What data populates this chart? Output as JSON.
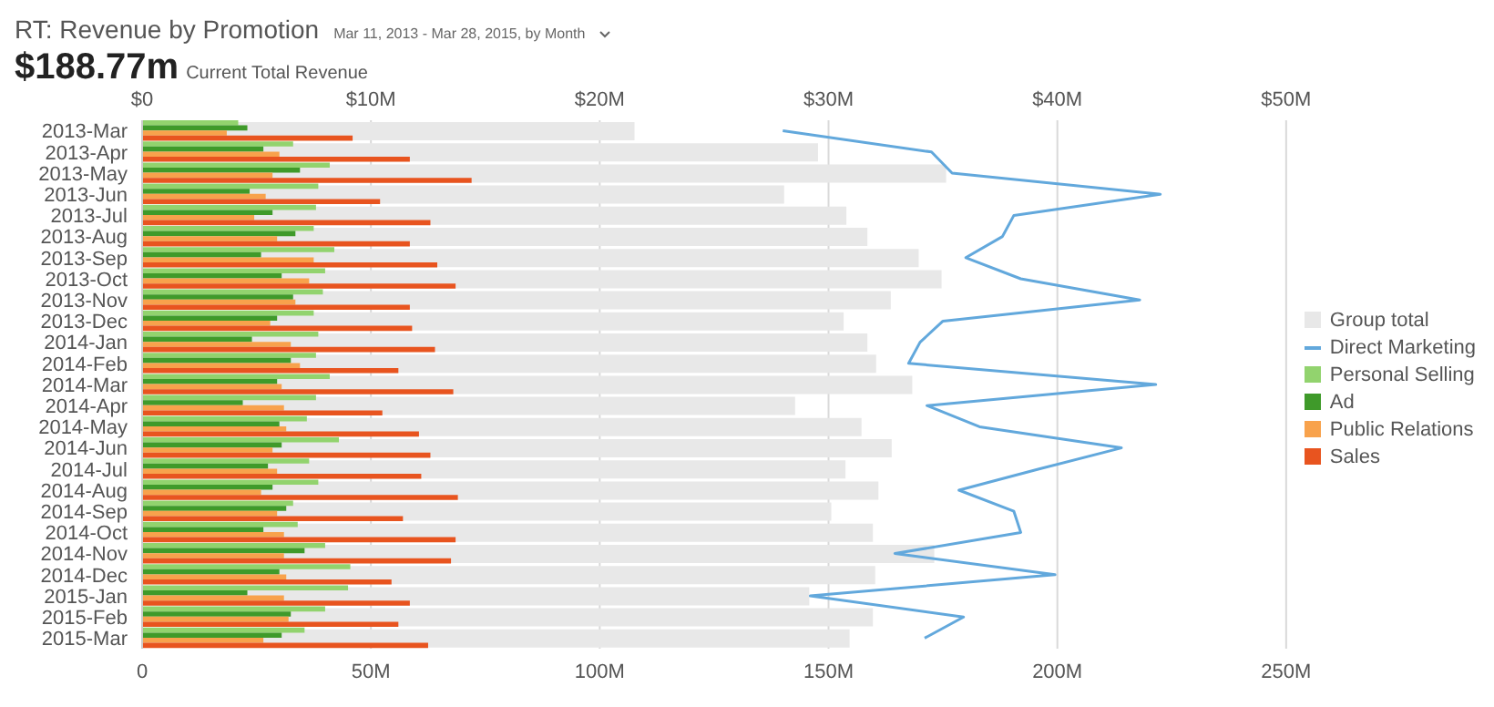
{
  "chart_data": {
    "type": "bar",
    "orientation": "horizontal",
    "title": "RT: Revenue by Promotion",
    "subtitle": "Mar 11, 2013 - Mar 28, 2015, by Month",
    "annotations": [
      "$188.77m",
      "Current Total Revenue"
    ],
    "categories": [
      "2013-Mar",
      "2013-Apr",
      "2013-May",
      "2013-Jun",
      "2013-Jul",
      "2013-Aug",
      "2013-Sep",
      "2013-Oct",
      "2013-Nov",
      "2013-Dec",
      "2014-Jan",
      "2014-Feb",
      "2014-Mar",
      "2014-Apr",
      "2014-May",
      "2014-Jun",
      "2014-Jul",
      "2014-Aug",
      "2014-Sep",
      "2014-Oct",
      "2014-Nov",
      "2014-Dec",
      "2015-Jan",
      "2015-Feb",
      "2015-Mar"
    ],
    "xlim": [
      0,
      250
    ],
    "xticks": [
      {
        "value": 0,
        "label": "0"
      },
      {
        "value": 50,
        "label": "50M"
      },
      {
        "value": 100,
        "label": "100M"
      },
      {
        "value": 150,
        "label": "150M"
      },
      {
        "value": 200,
        "label": "200M"
      },
      {
        "value": 250,
        "label": "250M"
      }
    ],
    "x2lim": [
      0,
      50
    ],
    "x2ticks": [
      {
        "value": 0,
        "label": "$0"
      },
      {
        "value": 10,
        "label": "$10M"
      },
      {
        "value": 20,
        "label": "$20M"
      },
      {
        "value": 30,
        "label": "$30M"
      },
      {
        "value": 40,
        "label": "$40M"
      },
      {
        "value": 50,
        "label": "$50M"
      }
    ],
    "grid": "x",
    "legend": "right",
    "series": [
      {
        "name": "Group total",
        "color": "#e8e8e8",
        "values": [
          107.6,
          147.7,
          175.7,
          140.3,
          153.9,
          158.5,
          169.7,
          174.7,
          163.6,
          153.3,
          158.5,
          160.4,
          168.3,
          142.7,
          157.2,
          163.8,
          153.7,
          160.9,
          150.6,
          159.7,
          173.1,
          160.2,
          145.8,
          159.7,
          154.6
        ]
      },
      {
        "name": "Direct Marketing",
        "type": "line",
        "axis": "x2",
        "color": "#62a8dc",
        "values": [
          28.0,
          34.5,
          35.4,
          44.5,
          38.1,
          37.6,
          36.0,
          38.4,
          43.6,
          35.0,
          34.0,
          33.5,
          44.3,
          34.3,
          36.6,
          42.8,
          39.2,
          35.7,
          38.1,
          38.4,
          32.9,
          39.9,
          29.2,
          35.9,
          34.2
        ]
      },
      {
        "name": "Personal Selling",
        "axis": "x2",
        "color": "#92d36e",
        "values": [
          4.2,
          6.6,
          8.2,
          7.7,
          7.6,
          7.5,
          8.4,
          8.0,
          7.9,
          7.5,
          7.7,
          7.6,
          8.2,
          7.6,
          7.2,
          8.6,
          7.3,
          7.7,
          6.6,
          6.8,
          8.0,
          9.1,
          9.0,
          8.0,
          7.1
        ]
      },
      {
        "name": "Ad",
        "axis": "x2",
        "color": "#3f9a2a",
        "values": [
          4.6,
          5.3,
          6.9,
          4.7,
          5.7,
          6.7,
          5.2,
          6.1,
          6.6,
          5.9,
          4.8,
          6.5,
          5.9,
          4.4,
          6.0,
          6.1,
          5.5,
          5.7,
          6.3,
          5.3,
          7.1,
          6.0,
          4.6,
          6.5,
          6.1
        ]
      },
      {
        "name": "Public Relations",
        "axis": "x2",
        "color": "#f8a24c",
        "values": [
          3.7,
          6.0,
          5.7,
          5.4,
          4.9,
          5.9,
          7.5,
          7.3,
          6.7,
          5.6,
          6.5,
          6.9,
          6.1,
          6.2,
          6.3,
          5.7,
          5.9,
          5.2,
          5.9,
          6.2,
          6.2,
          6.3,
          6.2,
          6.4,
          5.3
        ]
      },
      {
        "name": "Sales",
        "axis": "x2",
        "color": "#e8541f",
        "values": [
          9.2,
          11.7,
          14.4,
          10.4,
          12.6,
          11.7,
          12.9,
          13.7,
          11.7,
          11.8,
          12.8,
          11.2,
          13.6,
          10.5,
          12.1,
          12.6,
          12.2,
          13.8,
          11.4,
          13.7,
          13.5,
          10.9,
          11.7,
          11.2,
          12.5
        ]
      }
    ]
  }
}
